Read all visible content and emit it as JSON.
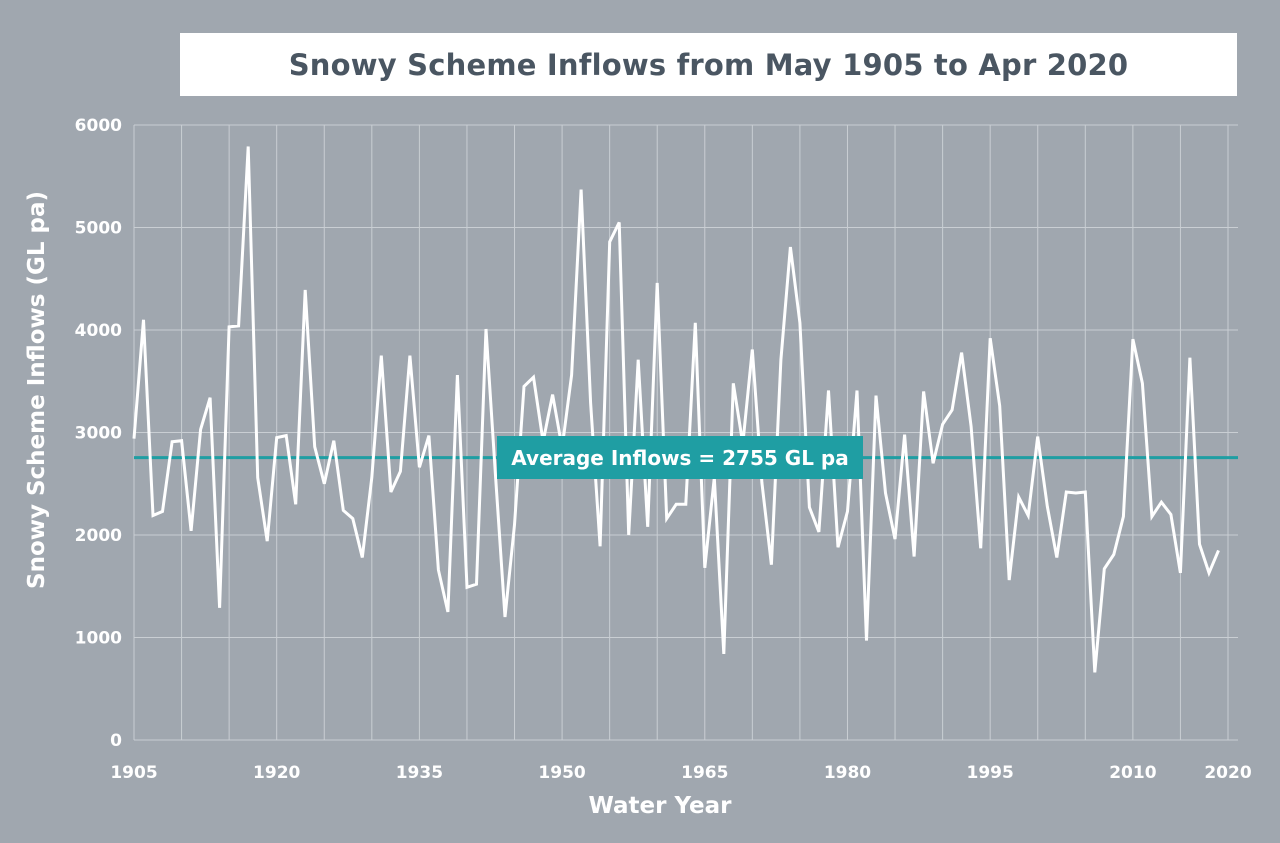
{
  "chart_data": {
    "type": "line",
    "title": "Snowy Scheme Inflows from May 1905 to Apr 2020",
    "xlabel": "Water Year",
    "ylabel": "Snowy Scheme Inflows (GL pa)",
    "xlim": [
      1905,
      2020
    ],
    "ylim": [
      0,
      6000
    ],
    "x_ticks": [
      1905,
      1920,
      1935,
      1950,
      1965,
      1980,
      1995,
      2010,
      2020
    ],
    "y_ticks": [
      0,
      1000,
      2000,
      3000,
      4000,
      5000,
      6000
    ],
    "grid": true,
    "line_color": "#ffffff",
    "average": {
      "value": 2755,
      "label": "Average Inflows = 2755 GL pa",
      "color": "#1f9ea3"
    },
    "series": [
      {
        "x": [
          1905,
          1906,
          1907,
          1908,
          1909,
          1910,
          1911,
          1912,
          1913,
          1914,
          1915,
          1916,
          1917,
          1918,
          1919,
          1920,
          1921,
          1922,
          1923,
          1924,
          1925,
          1926,
          1927,
          1928,
          1929,
          1930,
          1931,
          1932,
          1933,
          1934,
          1935,
          1936,
          1937,
          1938,
          1939,
          1940,
          1941,
          1942,
          1943,
          1944,
          1945,
          1946,
          1947,
          1948,
          1949,
          1950,
          1951,
          1952,
          1953,
          1954,
          1955,
          1956,
          1957,
          1958,
          1959,
          1960,
          1961,
          1962,
          1963,
          1964,
          1965,
          1966,
          1967,
          1968,
          1969,
          1970,
          1971,
          1972,
          1973,
          1974,
          1975,
          1976,
          1977,
          1978,
          1979,
          1980,
          1981,
          1982,
          1983,
          1984,
          1985,
          1986,
          1987,
          1988,
          1989,
          1990,
          1991,
          1992,
          1993,
          1994,
          1995,
          1996,
          1997,
          1998,
          1999,
          2000,
          2001,
          2002,
          2003,
          2004,
          2005,
          2006,
          2007,
          2008,
          2009,
          2010,
          2011,
          2012,
          2013,
          2014,
          2015,
          2016,
          2017,
          2018,
          2019
        ],
        "values": [
          2940,
          4100,
          2190,
          2230,
          2910,
          2920,
          2040,
          3030,
          3340,
          1290,
          4030,
          4040,
          5790,
          2560,
          1940,
          2950,
          2970,
          2300,
          4390,
          2860,
          2500,
          2920,
          2240,
          2160,
          1780,
          2560,
          3750,
          2420,
          2620,
          3750,
          2660,
          2970,
          1660,
          1250,
          3560,
          1490,
          1520,
          4010,
          2580,
          1200,
          2100,
          3450,
          3540,
          2910,
          3370,
          2850,
          3560,
          5370,
          3290,
          1890,
          4860,
          5050,
          2000,
          3710,
          2080,
          4460,
          2160,
          2300,
          2300,
          4070,
          1680,
          2560,
          840,
          3480,
          2890,
          3810,
          2510,
          1710,
          3710,
          4810,
          4070,
          2270,
          2030,
          3410,
          1880,
          2230,
          3410,
          970,
          3360,
          2410,
          1960,
          2980,
          1790,
          3400,
          2700,
          3080,
          3220,
          3780,
          3060,
          1870,
          3920,
          3260,
          1560,
          2370,
          2190,
          2960,
          2280,
          1780,
          2420,
          2410,
          2420,
          660,
          1670,
          1810,
          2180,
          3910,
          3480,
          2180,
          2320,
          2200,
          1630,
          3730,
          1910,
          1630,
          1850
        ]
      }
    ]
  }
}
